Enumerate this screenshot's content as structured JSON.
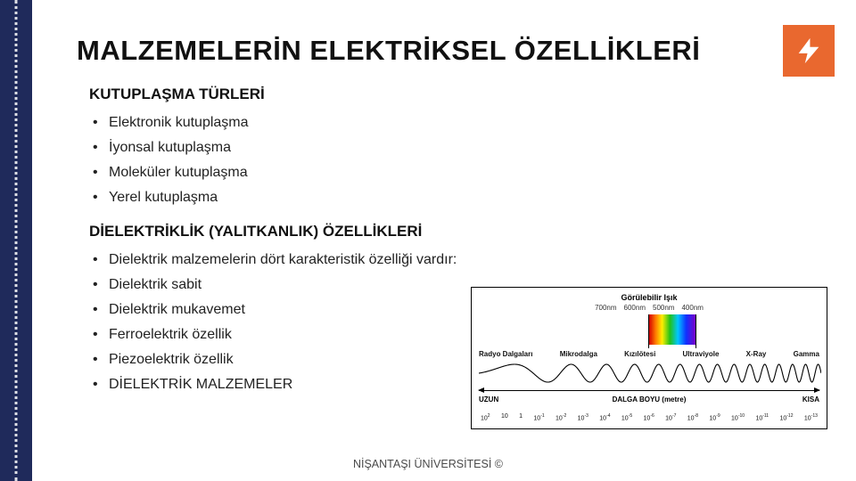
{
  "colors": {
    "leftbar": "#1f2a5b",
    "badge_bg": "#e9682f",
    "bolt_fill": "#ffffff",
    "text": "#111111",
    "footer_text": "#4a4a4a"
  },
  "title": "MALZEMELERİN ELEKTRİKSEL ÖZELLİKLERİ",
  "section1": {
    "heading": "KUTUPLAŞMA TÜRLERİ",
    "items": [
      "Elektronik kutuplaşma",
      "İyonsal kutuplaşma",
      "Moleküler kutuplaşma",
      "Yerel kutuplaşma"
    ]
  },
  "section2": {
    "heading": "DİELEKTRİKLİK (YALITKANLIK) ÖZELLİKLERİ",
    "items": [
      "Dielektrik malzemelerin dört karakteristik özelliği vardır:",
      "Dielektrik sabit",
      "Dielektrik mukavemet",
      "Ferroelektrik özellik",
      "Piezoelektrik özellik",
      "DİELEKTRİK MALZEMELER"
    ]
  },
  "spectrum": {
    "type": "infographic",
    "visible_label": "Görülebilir Işık",
    "visible_nm_labels": [
      "700nm",
      "600nm",
      "500nm",
      "400nm"
    ],
    "rainbow_colors": [
      "#d40000",
      "#ff7a00",
      "#ffee00",
      "#22c21a",
      "#00c6ff",
      "#1030ff",
      "#7a00c8"
    ],
    "bands": [
      "Radyo Dalgaları",
      "Mikrodalga",
      "Kızılötesi",
      "Ultraviyole",
      "X-Ray",
      "Gamma"
    ],
    "axis_left": "UZUN",
    "axis_center": "DALGA BOYU (metre)",
    "axis_right": "KISA",
    "ticks_exponents": [
      2,
      1,
      0,
      -1,
      -2,
      -3,
      -4,
      -5,
      -6,
      -7,
      -8,
      -9,
      -10,
      -11,
      -12,
      -13
    ],
    "wave": {
      "stroke": "#000000",
      "stroke_width": 1.1,
      "freq_start": 1.0,
      "freq_end": 28.0,
      "amplitude": 10
    },
    "background": "#ffffff",
    "border_color": "#000000",
    "label_fontsize": 8
  },
  "footer": "NİŞANTAŞI ÜNİVERSİTESİ ©"
}
